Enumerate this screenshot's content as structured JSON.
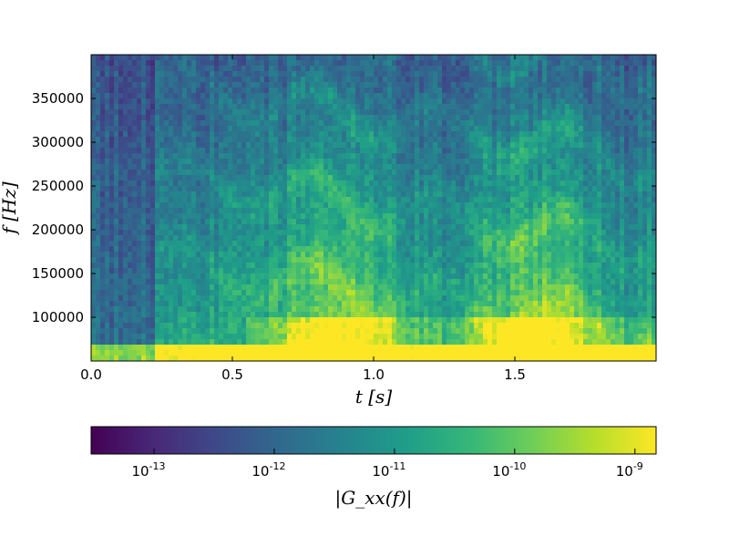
{
  "chart_data": {
    "type": "heatmap",
    "title": "",
    "xlabel": "t [s]",
    "ylabel": "f [Hz]",
    "xlim": [
      0.0,
      2.0
    ],
    "ylim": [
      50000,
      400000
    ],
    "x_ticks": [
      0.0,
      0.5,
      1.0,
      1.5
    ],
    "x_tick_labels": [
      "0.0",
      "0.5",
      "1.0",
      "1.5"
    ],
    "y_ticks": [
      100000,
      150000,
      200000,
      250000,
      300000,
      350000
    ],
    "y_tick_labels": [
      "100000",
      "150000",
      "200000",
      "250000",
      "300000",
      "350000"
    ],
    "colormap": "viridis",
    "colorbar": {
      "label": "|G_xx(f)|",
      "scale": "log",
      "range": [
        3e-14,
        1.5e-09
      ],
      "ticks": [
        1e-13,
        1e-12,
        1e-11,
        1e-10,
        1e-09
      ],
      "tick_labels": [
        {
          "base": "10",
          "exp": "-13"
        },
        {
          "base": "10",
          "exp": "-12"
        },
        {
          "base": "10",
          "exp": "-11"
        },
        {
          "base": "10",
          "exp": "-10"
        },
        {
          "base": "10",
          "exp": "-9"
        }
      ],
      "placement": "bottom"
    },
    "colors": [
      "#440154",
      "#482878",
      "#3e4989",
      "#31688e",
      "#26828e",
      "#1f9e89",
      "#35b779",
      "#6ece58",
      "#b5de2b",
      "#fde725"
    ]
  }
}
